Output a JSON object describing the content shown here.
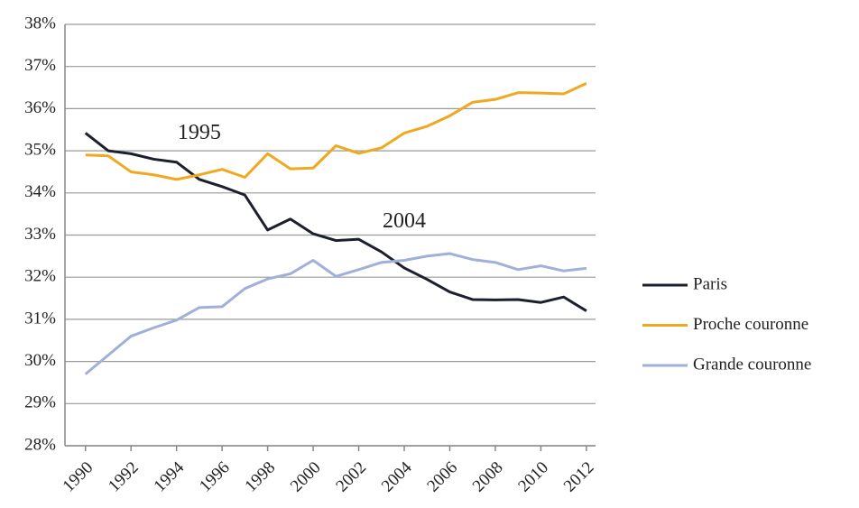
{
  "chart_data": {
    "type": "line",
    "x": [
      1990,
      1991,
      1992,
      1993,
      1994,
      1995,
      1996,
      1997,
      1998,
      1999,
      2000,
      2001,
      2002,
      2003,
      2004,
      2005,
      2006,
      2007,
      2008,
      2009,
      2010,
      2011,
      2012
    ],
    "series": [
      {
        "name": "Paris",
        "color": "#1c1f2e",
        "values": [
          35.42,
          35.0,
          34.93,
          34.8,
          34.73,
          34.32,
          34.15,
          33.95,
          33.12,
          33.38,
          33.03,
          32.87,
          32.9,
          32.6,
          32.22,
          31.95,
          31.65,
          31.47,
          31.46,
          31.47,
          31.4,
          31.53,
          31.2
        ]
      },
      {
        "name": "Proche couronne",
        "color": "#f0a820",
        "values": [
          34.9,
          34.88,
          34.5,
          34.43,
          34.32,
          34.43,
          34.56,
          34.37,
          34.93,
          34.57,
          34.59,
          35.12,
          34.94,
          35.07,
          35.42,
          35.58,
          35.83,
          36.15,
          36.22,
          36.38,
          36.37,
          36.35,
          36.6
        ]
      },
      {
        "name": "Grande couronne",
        "color": "#a0b0d8",
        "values": [
          29.7,
          30.15,
          30.6,
          30.8,
          30.98,
          31.28,
          31.3,
          31.73,
          31.96,
          32.08,
          32.4,
          32.02,
          32.18,
          32.35,
          32.4,
          32.5,
          32.56,
          32.42,
          32.35,
          32.18,
          32.27,
          32.15,
          32.21
        ]
      }
    ],
    "xlim": [
      1989.1,
      2012.4
    ],
    "xticks": [
      1990,
      1992,
      1994,
      1996,
      1998,
      2000,
      2002,
      2004,
      2006,
      2008,
      2010,
      2012
    ],
    "ylim": [
      28,
      38
    ],
    "yticks": [
      {
        "value": 28,
        "label": "28%"
      },
      {
        "value": 29,
        "label": "29%"
      },
      {
        "value": 30,
        "label": "30%"
      },
      {
        "value": 31,
        "label": "31%"
      },
      {
        "value": 32,
        "label": "32%"
      },
      {
        "value": 33,
        "label": "33%"
      },
      {
        "value": 34,
        "label": "34%"
      },
      {
        "value": 35,
        "label": "35%"
      },
      {
        "value": 36,
        "label": "36%"
      },
      {
        "value": 37,
        "label": "37%"
      },
      {
        "value": 38,
        "label": "38%"
      }
    ],
    "grid": true,
    "legend": "right",
    "annotations": [
      {
        "text": "1995",
        "x": 1995,
        "y": 35.4
      },
      {
        "text": "2004",
        "x": 2004,
        "y": 33.3
      }
    ]
  }
}
